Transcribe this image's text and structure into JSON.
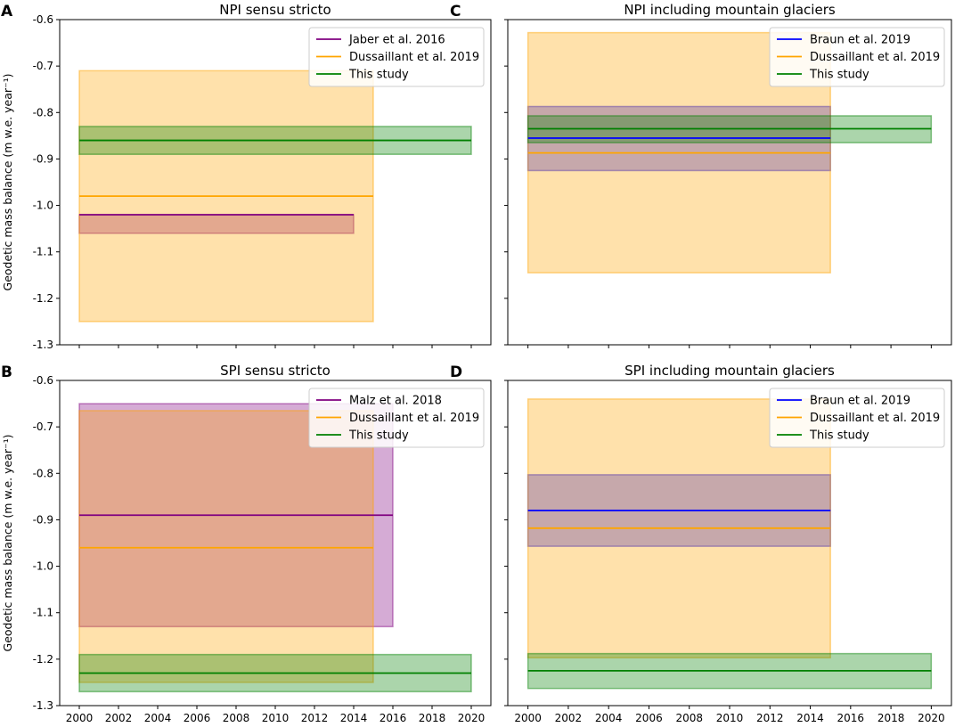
{
  "chart_data": [
    {
      "type": "line",
      "letter": "A",
      "title": "NPI sensu stricto",
      "ylabel": "Geodetic mass balance (m w.e. year⁻¹)",
      "xlim": [
        1999.0,
        2021.0
      ],
      "ylim": [
        -1.3,
        -0.6
      ],
      "yticks": [
        -0.6,
        -0.7,
        -0.8,
        -0.9,
        -1.0,
        -1.1,
        -1.2,
        -1.3
      ],
      "ytick_labels": [
        "-0.6",
        "-0.7",
        "-0.8",
        "-0.9",
        "-1.0",
        "-1.1",
        "-1.2",
        "-1.3"
      ],
      "xticks": [
        2000,
        2002,
        2004,
        2006,
        2008,
        2010,
        2012,
        2014,
        2016,
        2018,
        2020
      ],
      "xtick_labels": [],
      "legend_position": "top-right",
      "series": [
        {
          "name": "Jaber et al. 2016",
          "color": "#800080",
          "x_start": 2000,
          "x_end": 2014,
          "value": -1.02,
          "lower": -1.06,
          "upper": -1.02
        },
        {
          "name": "Dussaillant et al. 2019",
          "color": "#ffa500",
          "x_start": 2000,
          "x_end": 2015,
          "value": -0.98,
          "lower": -1.25,
          "upper": -0.71
        },
        {
          "name": "This study",
          "color": "#008000",
          "x_start": 2000,
          "x_end": 2020,
          "value": -0.86,
          "lower": -0.89,
          "upper": -0.83
        }
      ]
    },
    {
      "type": "line",
      "letter": "C",
      "title": "NPI including mountain glaciers",
      "ylabel": "",
      "xlim": [
        1999.0,
        2021.0
      ],
      "ylim": [
        -1.3,
        -0.6
      ],
      "yticks": [
        -0.6,
        -0.7,
        -0.8,
        -0.9,
        -1.0,
        -1.1,
        -1.2,
        -1.3
      ],
      "ytick_labels": [],
      "xticks": [
        2000,
        2002,
        2004,
        2006,
        2008,
        2010,
        2012,
        2014,
        2016,
        2018,
        2020
      ],
      "xtick_labels": [],
      "legend_position": "top-right",
      "series": [
        {
          "name": "Braun et al. 2019",
          "color": "#0000ff",
          "x_start": 2000,
          "x_end": 2015,
          "value": -0.855,
          "lower": -0.925,
          "upper": -0.787
        },
        {
          "name": "Dussaillant et al. 2019",
          "color": "#ffa500",
          "x_start": 2000,
          "x_end": 2015,
          "value": -0.887,
          "lower": -1.145,
          "upper": -0.628
        },
        {
          "name": "This study",
          "color": "#008000",
          "x_start": 2000,
          "x_end": 2020,
          "value": -0.835,
          "lower": -0.865,
          "upper": -0.807
        }
      ]
    },
    {
      "type": "line",
      "letter": "B",
      "title": "SPI sensu stricto",
      "ylabel": "Geodetic mass balance (m w.e. year⁻¹)",
      "xlim": [
        1999.0,
        2021.0
      ],
      "ylim": [
        -1.3,
        -0.6
      ],
      "yticks": [
        -0.6,
        -0.7,
        -0.8,
        -0.9,
        -1.0,
        -1.1,
        -1.2,
        -1.3
      ],
      "ytick_labels": [
        "-0.6",
        "-0.7",
        "-0.8",
        "-0.9",
        "-1.0",
        "-1.1",
        "-1.2",
        "-1.3"
      ],
      "xticks": [
        2000,
        2002,
        2004,
        2006,
        2008,
        2010,
        2012,
        2014,
        2016,
        2018,
        2020
      ],
      "xtick_labels": [
        "2000",
        "2002",
        "2004",
        "2006",
        "2008",
        "2010",
        "2012",
        "2014",
        "2016",
        "2018",
        "2020"
      ],
      "legend_position": "top-right",
      "series": [
        {
          "name": "Malz et al. 2018",
          "color": "#800080",
          "x_start": 2000,
          "x_end": 2016,
          "value": -0.89,
          "lower": -1.13,
          "upper": -0.65
        },
        {
          "name": "Dussaillant et al. 2019",
          "color": "#ffa500",
          "x_start": 2000,
          "x_end": 2015,
          "value": -0.96,
          "lower": -1.25,
          "upper": -0.665
        },
        {
          "name": "This study",
          "color": "#008000",
          "x_start": 2000,
          "x_end": 2020,
          "value": -1.23,
          "lower": -1.27,
          "upper": -1.19
        }
      ]
    },
    {
      "type": "line",
      "letter": "D",
      "title": "SPI including mountain glaciers",
      "ylabel": "",
      "xlim": [
        1999.0,
        2021.0
      ],
      "ylim": [
        -1.3,
        -0.6
      ],
      "yticks": [
        -0.6,
        -0.7,
        -0.8,
        -0.9,
        -1.0,
        -1.1,
        -1.2,
        -1.3
      ],
      "ytick_labels": [],
      "xticks": [
        2000,
        2002,
        2004,
        2006,
        2008,
        2010,
        2012,
        2014,
        2016,
        2018,
        2020
      ],
      "xtick_labels": [
        "2000",
        "2002",
        "2004",
        "2006",
        "2008",
        "2010",
        "2012",
        "2014",
        "2016",
        "2018",
        "2020"
      ],
      "legend_position": "top-right",
      "series": [
        {
          "name": "Braun et al. 2019",
          "color": "#0000ff",
          "x_start": 2000,
          "x_end": 2015,
          "value": -0.88,
          "lower": -0.957,
          "upper": -0.803
        },
        {
          "name": "Dussaillant et al. 2019",
          "color": "#ffa500",
          "x_start": 2000,
          "x_end": 2015,
          "value": -0.918,
          "lower": -1.197,
          "upper": -0.64
        },
        {
          "name": "This study",
          "color": "#008000",
          "x_start": 2000,
          "x_end": 2020,
          "value": -1.225,
          "lower": -1.263,
          "upper": -1.188
        }
      ]
    }
  ]
}
